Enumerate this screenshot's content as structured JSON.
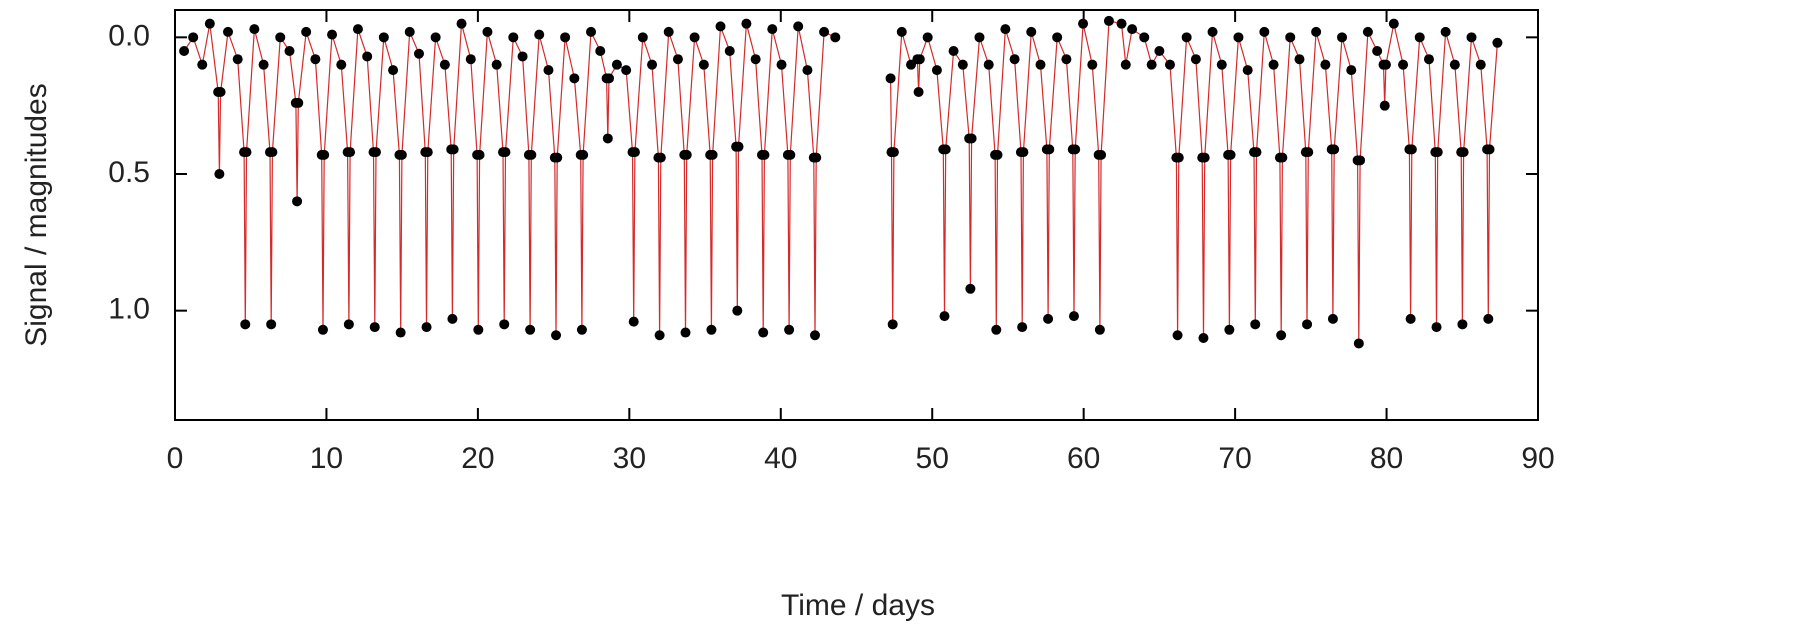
{
  "chart_data": {
    "type": "scatter",
    "x_label": "Time / days",
    "y_label": "Signal / magnitudes",
    "xlim": [
      0,
      90
    ],
    "xticks": [
      0,
      10,
      20,
      30,
      40,
      50,
      60,
      70,
      80,
      90
    ],
    "ylim": [
      -0.1,
      1.4
    ],
    "y_inverted": true,
    "yticks": [
      {
        "value": 0,
        "label": "0.0"
      },
      {
        "value": 0.5,
        "label": "0.5"
      },
      {
        "value": 1,
        "label": "1.0"
      }
    ],
    "color": "#000000",
    "line_color": "#d42a2a",
    "x": [
      0.6,
      1.2,
      1.8,
      2.3,
      2.85,
      2.93,
      3.01,
      3.5,
      4.14,
      4.56,
      4.64,
      4.72,
      5.24,
      5.85,
      6.27,
      6.35,
      6.43,
      6.95,
      7.56,
      7.98,
      8.06,
      8.14,
      8.66,
      9.27,
      9.69,
      9.77,
      9.85,
      10.37,
      10.98,
      11.4,
      11.48,
      11.56,
      12.08,
      12.69,
      13.11,
      13.19,
      13.27,
      13.79,
      14.4,
      14.82,
      14.9,
      14.98,
      15.5,
      16.11,
      16.53,
      16.61,
      16.69,
      17.21,
      17.82,
      18.24,
      18.32,
      18.4,
      18.92,
      19.53,
      19.95,
      20.03,
      20.11,
      20.63,
      21.24,
      21.66,
      21.74,
      21.82,
      22.34,
      22.95,
      23.37,
      23.45,
      23.53,
      24.05,
      24.66,
      25.08,
      25.16,
      25.24,
      25.76,
      26.37,
      26.79,
      26.87,
      26.95,
      27.47,
      28.08,
      28.5,
      28.58,
      28.66,
      29.18,
      29.79,
      30.21,
      30.29,
      30.37,
      30.89,
      31.5,
      31.92,
      32.0,
      32.08,
      32.6,
      33.21,
      33.63,
      33.71,
      33.79,
      34.31,
      34.92,
      35.34,
      35.42,
      35.5,
      36.02,
      36.63,
      37.05,
      37.13,
      37.21,
      37.73,
      38.34,
      38.76,
      38.84,
      38.92,
      39.44,
      40.05,
      40.47,
      40.55,
      40.63,
      41.15,
      41.76,
      42.18,
      42.26,
      42.34,
      42.86,
      43.6,
      45.5,
      47.25,
      47.31,
      47.39,
      47.47,
      47.99,
      48.6,
      49.02,
      49.1,
      49.18,
      49.7,
      50.31,
      50.73,
      50.81,
      50.89,
      51.41,
      52.02,
      52.44,
      52.52,
      52.6,
      53.12,
      53.73,
      54.15,
      54.23,
      54.31,
      54.83,
      55.44,
      55.86,
      55.94,
      56.02,
      56.54,
      57.15,
      57.57,
      57.65,
      57.73,
      58.25,
      58.86,
      59.28,
      59.36,
      59.44,
      59.96,
      60.57,
      60.99,
      61.07,
      61.15,
      61.67,
      62.5,
      62.78,
      63.2,
      64.0,
      64.49,
      65.0,
      65.7,
      66.12,
      66.2,
      66.28,
      66.8,
      67.41,
      67.83,
      67.91,
      67.99,
      68.51,
      69.12,
      69.54,
      69.62,
      69.7,
      70.22,
      70.83,
      71.25,
      71.33,
      71.41,
      71.93,
      72.54,
      72.96,
      73.04,
      73.12,
      73.64,
      74.25,
      74.67,
      74.75,
      74.83,
      75.35,
      75.96,
      76.38,
      76.46,
      76.54,
      77.06,
      77.67,
      78.09,
      78.17,
      78.25,
      78.77,
      79.38,
      79.8,
      79.88,
      79.96,
      80.48,
      81.09,
      81.51,
      81.59,
      81.67,
      82.19,
      82.8,
      83.22,
      83.3,
      83.38,
      83.9,
      84.51,
      84.93,
      85.01,
      85.09,
      85.61,
      86.22,
      86.64,
      86.72,
      86.8,
      87.32
    ],
    "values": [
      0.05,
      0.0,
      0.1,
      -0.05,
      0.2,
      0.5,
      0.2,
      -0.02,
      0.08,
      0.42,
      1.05,
      0.42,
      -0.03,
      0.1,
      0.42,
      1.05,
      0.42,
      0.0,
      0.05,
      0.24,
      0.6,
      0.24,
      -0.02,
      0.08,
      0.43,
      1.07,
      0.43,
      -0.01,
      0.1,
      0.42,
      1.05,
      0.42,
      -0.03,
      0.07,
      0.42,
      1.06,
      0.42,
      0.0,
      0.12,
      0.43,
      1.08,
      0.43,
      -0.02,
      0.06,
      0.42,
      1.06,
      0.42,
      0.0,
      0.1,
      0.41,
      1.03,
      0.41,
      -0.05,
      0.08,
      0.43,
      1.07,
      0.43,
      -0.02,
      0.1,
      0.42,
      1.05,
      0.42,
      0.0,
      0.07,
      0.43,
      1.07,
      0.43,
      -0.01,
      0.12,
      0.44,
      1.09,
      0.44,
      0.0,
      0.15,
      0.43,
      1.07,
      0.43,
      -0.02,
      0.05,
      0.15,
      0.37,
      0.15,
      0.1,
      0.12,
      0.42,
      1.04,
      0.42,
      0.0,
      0.1,
      0.44,
      1.09,
      0.44,
      -0.02,
      0.08,
      0.43,
      1.08,
      0.43,
      0.0,
      0.1,
      0.43,
      1.07,
      0.43,
      -0.04,
      0.05,
      0.4,
      1.0,
      0.4,
      -0.05,
      0.08,
      0.43,
      1.08,
      0.43,
      -0.03,
      0.1,
      0.43,
      1.07,
      0.43,
      -0.04,
      0.12,
      0.44,
      1.09,
      0.44,
      -0.02,
      0.0,
      null,
      0.15,
      0.42,
      1.05,
      0.42,
      -0.02,
      0.1,
      0.08,
      0.2,
      0.08,
      0.0,
      0.12,
      0.41,
      1.02,
      0.41,
      0.05,
      0.1,
      0.37,
      0.92,
      0.37,
      0.0,
      0.1,
      0.43,
      1.07,
      0.43,
      -0.03,
      0.08,
      0.42,
      1.06,
      0.42,
      -0.02,
      0.1,
      0.41,
      1.03,
      0.41,
      0.0,
      0.08,
      0.41,
      1.02,
      0.41,
      -0.05,
      0.1,
      0.43,
      1.07,
      0.43,
      -0.06,
      -0.05,
      0.1,
      -0.03,
      0.0,
      0.1,
      0.05,
      0.1,
      0.44,
      1.09,
      0.44,
      0.0,
      0.08,
      0.44,
      1.1,
      0.44,
      -0.02,
      0.1,
      0.43,
      1.07,
      0.43,
      0.0,
      0.12,
      0.42,
      1.05,
      0.42,
      -0.02,
      0.1,
      0.44,
      1.09,
      0.44,
      0.0,
      0.08,
      0.42,
      1.05,
      0.42,
      -0.02,
      0.1,
      0.41,
      1.03,
      0.41,
      0.0,
      0.12,
      0.45,
      1.12,
      0.45,
      -0.02,
      0.05,
      0.1,
      0.25,
      0.1,
      -0.05,
      0.1,
      0.41,
      1.03,
      0.41,
      0.0,
      0.08,
      0.42,
      1.06,
      0.42,
      -0.02,
      0.1,
      0.42,
      1.05,
      0.42,
      0.0,
      0.1,
      0.41,
      1.03,
      0.41,
      0.02
    ]
  }
}
